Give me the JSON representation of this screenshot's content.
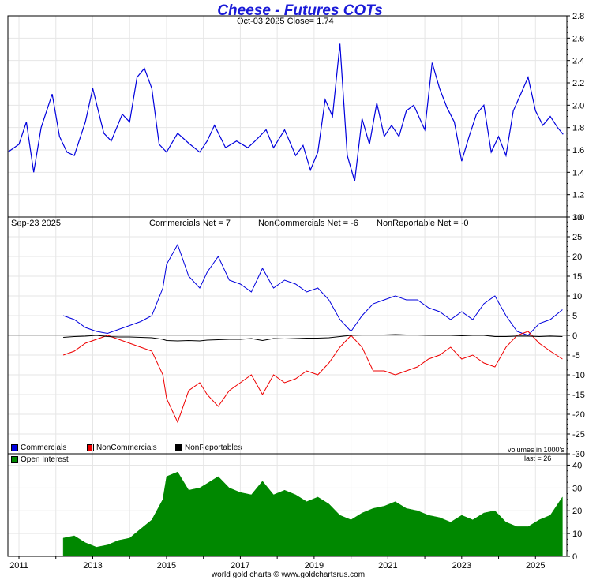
{
  "title": "Cheese - Futures COTs",
  "subtitle": "Oct-03  2025   Close= 1.74",
  "cot_date": "Sep-23  2025",
  "net_labels": {
    "commercials": "Commercials Net = 7",
    "noncommercials": "NonCommercials Net = -6",
    "nonreportables": "NonReportable Net = -0"
  },
  "legend": {
    "commercials": "Commercials",
    "noncommercials": "NonCommercials",
    "nonreportables": "NonReportables",
    "open_interest": "Open Interest"
  },
  "volume_units": "volumes in 1000's",
  "last_oi": "last = 26",
  "footer": "world gold charts © www.goldchartsrus.com",
  "colors": {
    "price": "#0000dd",
    "commercials": "#0000dd",
    "noncommercials": "#ee0000",
    "nonreportables": "#000000",
    "open_interest": "#008800",
    "grid": "#e6e6e6"
  },
  "chart_data": [
    {
      "type": "line",
      "title": "Cheese price",
      "ylim": [
        1.0,
        2.8
      ],
      "yticks": [
        "1.0",
        "1.2",
        "1.4",
        "1.6",
        "1.8",
        "2.0",
        "2.2",
        "2.4",
        "2.6",
        "2.8"
      ],
      "x": [
        2010.7,
        2011.0,
        2011.2,
        2011.4,
        2011.6,
        2011.9,
        2012.1,
        2012.3,
        2012.5,
        2012.8,
        2013.0,
        2013.3,
        2013.5,
        2013.8,
        2014.0,
        2014.2,
        2014.4,
        2014.6,
        2014.8,
        2015.0,
        2015.3,
        2015.6,
        2015.9,
        2016.1,
        2016.3,
        2016.6,
        2016.9,
        2017.2,
        2017.4,
        2017.7,
        2017.9,
        2018.2,
        2018.5,
        2018.7,
        2018.9,
        2019.1,
        2019.3,
        2019.5,
        2019.7,
        2019.9,
        2020.1,
        2020.3,
        2020.5,
        2020.7,
        2020.9,
        2021.1,
        2021.3,
        2021.5,
        2021.7,
        2022.0,
        2022.2,
        2022.4,
        2022.6,
        2022.8,
        2023.0,
        2023.2,
        2023.4,
        2023.6,
        2023.8,
        2024.0,
        2024.2,
        2024.4,
        2024.6,
        2024.8,
        2025.0,
        2025.2,
        2025.4,
        2025.6,
        2025.75
      ],
      "values": [
        1.58,
        1.65,
        1.85,
        1.4,
        1.8,
        2.1,
        1.72,
        1.58,
        1.55,
        1.85,
        2.15,
        1.75,
        1.68,
        1.92,
        1.85,
        2.25,
        2.33,
        2.15,
        1.65,
        1.58,
        1.75,
        1.66,
        1.58,
        1.68,
        1.82,
        1.62,
        1.68,
        1.62,
        1.68,
        1.78,
        1.62,
        1.78,
        1.55,
        1.64,
        1.42,
        1.58,
        2.05,
        1.9,
        2.55,
        1.55,
        1.32,
        1.88,
        1.65,
        2.02,
        1.72,
        1.82,
        1.72,
        1.95,
        2.0,
        1.78,
        2.38,
        2.15,
        1.98,
        1.85,
        1.5,
        1.72,
        1.92,
        2.0,
        1.58,
        1.72,
        1.55,
        1.95,
        2.1,
        2.25,
        1.95,
        1.82,
        1.9,
        1.8,
        1.74
      ]
    },
    {
      "type": "line",
      "title": "Net positions",
      "ylim": [
        -30,
        30
      ],
      "yticks": [
        "-30",
        "-25",
        "-20",
        "-15",
        "-10",
        "-5",
        "0",
        "5",
        "10",
        "15",
        "20",
        "25",
        "30"
      ],
      "x": [
        2012.2,
        2012.5,
        2012.8,
        2013.1,
        2013.4,
        2013.7,
        2014.0,
        2014.3,
        2014.6,
        2014.9,
        2015.0,
        2015.3,
        2015.6,
        2015.9,
        2016.1,
        2016.4,
        2016.7,
        2017.0,
        2017.3,
        2017.6,
        2017.9,
        2018.2,
        2018.5,
        2018.8,
        2019.1,
        2019.4,
        2019.7,
        2020.0,
        2020.3,
        2020.6,
        2020.9,
        2021.2,
        2021.5,
        2021.8,
        2022.1,
        2022.4,
        2022.7,
        2023.0,
        2023.3,
        2023.6,
        2023.9,
        2024.2,
        2024.5,
        2024.8,
        2025.1,
        2025.4,
        2025.73
      ],
      "series": [
        {
          "name": "Commercials",
          "values": [
            5,
            4,
            2,
            1,
            0.5,
            1.5,
            2.5,
            3.5,
            5,
            12,
            18,
            23,
            15,
            12,
            16,
            20,
            14,
            13,
            11,
            17,
            12,
            14,
            13,
            11,
            12,
            9,
            4,
            1,
            5,
            8,
            9,
            10,
            9,
            9,
            7,
            6,
            4,
            6,
            4,
            8,
            10,
            5,
            1,
            0,
            3,
            4,
            6.5
          ]
        },
        {
          "name": "NonCommercials",
          "values": [
            -5,
            -4,
            -2,
            -1,
            0,
            -1,
            -2,
            -3,
            -4,
            -10,
            -16,
            -22,
            -14,
            -12,
            -15,
            -18,
            -14,
            -12,
            -10,
            -15,
            -10,
            -12,
            -11,
            -9,
            -10,
            -7,
            -3,
            0,
            -3,
            -9,
            -9,
            -10,
            -9,
            -8,
            -6,
            -5,
            -3,
            -6,
            -5,
            -7,
            -8,
            -3,
            0,
            1,
            -2,
            -4,
            -6
          ]
        },
        {
          "name": "NonReportables",
          "values": [
            -0.5,
            -0.3,
            -0.2,
            0,
            -0.3,
            -0.4,
            -0.4,
            -0.5,
            -0.6,
            -1,
            -1.3,
            -1.4,
            -1.3,
            -1.4,
            -1.2,
            -1.1,
            -1,
            -1,
            -0.8,
            -1.3,
            -0.8,
            -0.9,
            -0.8,
            -0.7,
            -0.7,
            -0.6,
            -0.3,
            0,
            0.1,
            0.1,
            0.1,
            0.2,
            0.1,
            0.1,
            0,
            0,
            0,
            -0.1,
            0,
            0,
            -0.3,
            -0.3,
            -0.2,
            -0.2,
            -0.3,
            -0.2,
            -0.3
          ]
        }
      ]
    },
    {
      "type": "area",
      "title": "Open Interest",
      "ylim": [
        0,
        45
      ],
      "yticks": [
        "0",
        "10",
        "20",
        "30",
        "40"
      ],
      "x": [
        2012.2,
        2012.5,
        2012.8,
        2013.1,
        2013.4,
        2013.7,
        2014.0,
        2014.3,
        2014.6,
        2014.9,
        2015.0,
        2015.3,
        2015.6,
        2015.9,
        2016.1,
        2016.4,
        2016.7,
        2017.0,
        2017.3,
        2017.6,
        2017.9,
        2018.2,
        2018.5,
        2018.8,
        2019.1,
        2019.4,
        2019.7,
        2020.0,
        2020.3,
        2020.6,
        2020.9,
        2021.2,
        2021.5,
        2021.8,
        2022.1,
        2022.4,
        2022.7,
        2023.0,
        2023.3,
        2023.6,
        2023.9,
        2024.2,
        2024.5,
        2024.8,
        2025.1,
        2025.4,
        2025.73
      ],
      "values": [
        8,
        9,
        6,
        4,
        5,
        7,
        8,
        12,
        16,
        25,
        35,
        37,
        29,
        30,
        32,
        35,
        30,
        28,
        27,
        33,
        27,
        29,
        27,
        24,
        26,
        23,
        18,
        16,
        19,
        21,
        22,
        24,
        21,
        20,
        18,
        17,
        15,
        18,
        16,
        19,
        20,
        15,
        13,
        13,
        16,
        18,
        26
      ]
    }
  ],
  "x_axis": {
    "xlim": [
      2010.7,
      2025.85
    ],
    "ticks": [
      "2011",
      "2013",
      "2015",
      "2017",
      "2019",
      "2021",
      "2023",
      "2025"
    ]
  }
}
